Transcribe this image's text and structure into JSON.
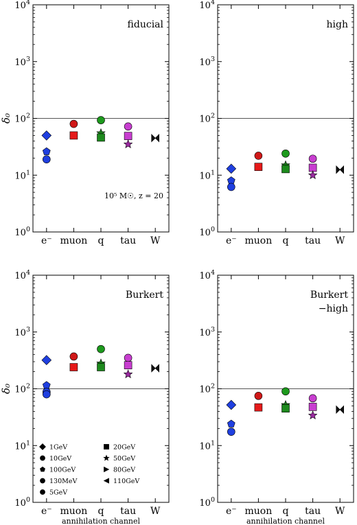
{
  "chart_data": [
    {
      "type": "scatter",
      "panel_label": "fiducial",
      "annotation": "10⁵ M☉, z = 20",
      "ylabel": "δ₀",
      "xlabel": "",
      "yscale": "log",
      "ylim": [
        1,
        10000
      ],
      "reference_line": 100,
      "categories": [
        "e⁻",
        "muon",
        "q",
        "tau",
        "W"
      ],
      "points": [
        {
          "x": "e⁻",
          "y": 50,
          "marker": "diamond",
          "color": "#1f3fe0"
        },
        {
          "x": "e⁻",
          "y": 26,
          "marker": "pentagon",
          "color": "#1f3fe0"
        },
        {
          "x": "e⁻",
          "y": 19,
          "marker": "circle",
          "color": "#1f3fe0"
        },
        {
          "x": "muon",
          "y": 80,
          "marker": "circle",
          "color": "#d01818"
        },
        {
          "x": "muon",
          "y": 50,
          "marker": "square",
          "color": "#e61a1a"
        },
        {
          "x": "q",
          "y": 93,
          "marker": "circle",
          "color": "#1d9a1d"
        },
        {
          "x": "q",
          "y": 55,
          "marker": "star",
          "color": "#1a7a1a"
        },
        {
          "x": "q",
          "y": 46,
          "marker": "square",
          "color": "#1d8a1d"
        },
        {
          "x": "tau",
          "y": 72,
          "marker": "circle",
          "color": "#c83ed0"
        },
        {
          "x": "tau",
          "y": 49,
          "marker": "square",
          "color": "#c83ed0"
        },
        {
          "x": "tau",
          "y": 35,
          "marker": "star",
          "color": "#9a2aa0"
        },
        {
          "x": "W",
          "y": 45,
          "marker": "bowtie",
          "color": "#111111"
        }
      ]
    },
    {
      "type": "scatter",
      "panel_label": "high",
      "annotation": "",
      "ylabel": "",
      "xlabel": "",
      "yscale": "log",
      "ylim": [
        1,
        10000
      ],
      "reference_line": 100,
      "categories": [
        "e⁻",
        "muon",
        "q",
        "tau",
        "W"
      ],
      "points": [
        {
          "x": "e⁻",
          "y": 13,
          "marker": "diamond",
          "color": "#1f3fe0"
        },
        {
          "x": "e⁻",
          "y": 8,
          "marker": "pentagon",
          "color": "#1f3fe0"
        },
        {
          "x": "e⁻",
          "y": 6.2,
          "marker": "circle",
          "color": "#1f3fe0"
        },
        {
          "x": "muon",
          "y": 22,
          "marker": "circle",
          "color": "#d01818"
        },
        {
          "x": "muon",
          "y": 14,
          "marker": "square",
          "color": "#e61a1a"
        },
        {
          "x": "q",
          "y": 24,
          "marker": "circle",
          "color": "#1d9a1d"
        },
        {
          "x": "q",
          "y": 15,
          "marker": "star",
          "color": "#1a7a1a"
        },
        {
          "x": "q",
          "y": 12.8,
          "marker": "square",
          "color": "#1d8a1d"
        },
        {
          "x": "tau",
          "y": 19.5,
          "marker": "circle",
          "color": "#c83ed0"
        },
        {
          "x": "tau",
          "y": 13.5,
          "marker": "square",
          "color": "#c83ed0"
        },
        {
          "x": "tau",
          "y": 10,
          "marker": "star",
          "color": "#9a2aa0"
        },
        {
          "x": "W",
          "y": 12.5,
          "marker": "bowtie",
          "color": "#111111"
        }
      ]
    },
    {
      "type": "scatter",
      "panel_label": "Burkert",
      "annotation": "",
      "ylabel": "δ₀",
      "xlabel": "annihilation channel",
      "yscale": "log",
      "ylim": [
        1,
        10000
      ],
      "reference_line": 100,
      "categories": [
        "e⁻",
        "muon",
        "q",
        "tau",
        "W"
      ],
      "points": [
        {
          "x": "e⁻",
          "y": 320,
          "marker": "diamond",
          "color": "#1f3fe0"
        },
        {
          "x": "e⁻",
          "y": 115,
          "marker": "pentagon",
          "color": "#1f3fe0"
        },
        {
          "x": "e⁻",
          "y": 88,
          "marker": "circle",
          "color": "#1f3fe0"
        },
        {
          "x": "e⁻",
          "y": 80,
          "marker": "circle",
          "color": "#1f3fe0"
        },
        {
          "x": "muon",
          "y": 370,
          "marker": "circle",
          "color": "#d01818"
        },
        {
          "x": "muon",
          "y": 240,
          "marker": "square",
          "color": "#e61a1a"
        },
        {
          "x": "q",
          "y": 500,
          "marker": "circle",
          "color": "#1d9a1d"
        },
        {
          "x": "q",
          "y": 280,
          "marker": "star",
          "color": "#1a7a1a"
        },
        {
          "x": "q",
          "y": 240,
          "marker": "square",
          "color": "#1d8a1d"
        },
        {
          "x": "tau",
          "y": 350,
          "marker": "circle",
          "color": "#c83ed0"
        },
        {
          "x": "tau",
          "y": 260,
          "marker": "square",
          "color": "#c83ed0"
        },
        {
          "x": "tau",
          "y": 180,
          "marker": "star",
          "color": "#9a2aa0"
        },
        {
          "x": "W",
          "y": 230,
          "marker": "bowtie",
          "color": "#111111"
        }
      ],
      "legend": {
        "placement": "lower-left",
        "entries": [
          {
            "label": "1GeV",
            "marker": "diamond"
          },
          {
            "label": "20GeV",
            "marker": "square"
          },
          {
            "label": "10GeV",
            "marker": "circle"
          },
          {
            "label": "50GeV",
            "marker": "star"
          },
          {
            "label": "100GeV",
            "marker": "pentagon"
          },
          {
            "label": "80GeV",
            "marker": "triangle-right"
          },
          {
            "label": "130MeV",
            "marker": "circle"
          },
          {
            "label": "110GeV",
            "marker": "triangle-left"
          },
          {
            "label": "5GeV",
            "marker": "circle"
          }
        ]
      }
    },
    {
      "type": "scatter",
      "panel_label": "Burkert\n−high",
      "annotation": "",
      "ylabel": "",
      "xlabel": "annihilation channel",
      "yscale": "log",
      "ylim": [
        1,
        10000
      ],
      "reference_line": 100,
      "categories": [
        "e⁻",
        "muon",
        "q",
        "tau",
        "W"
      ],
      "points": [
        {
          "x": "e⁻",
          "y": 52,
          "marker": "diamond",
          "color": "#1f3fe0"
        },
        {
          "x": "e⁻",
          "y": 24,
          "marker": "pentagon",
          "color": "#1f3fe0"
        },
        {
          "x": "e⁻",
          "y": 17.5,
          "marker": "circle",
          "color": "#1f3fe0"
        },
        {
          "x": "muon",
          "y": 75,
          "marker": "circle",
          "color": "#d01818"
        },
        {
          "x": "muon",
          "y": 47,
          "marker": "square",
          "color": "#e61a1a"
        },
        {
          "x": "q",
          "y": 90,
          "marker": "circle",
          "color": "#1d9a1d"
        },
        {
          "x": "q",
          "y": 52,
          "marker": "star",
          "color": "#1a7a1a"
        },
        {
          "x": "q",
          "y": 45,
          "marker": "square",
          "color": "#1d8a1d"
        },
        {
          "x": "tau",
          "y": 68,
          "marker": "circle",
          "color": "#c83ed0"
        },
        {
          "x": "tau",
          "y": 48,
          "marker": "square",
          "color": "#c83ed0"
        },
        {
          "x": "tau",
          "y": 34,
          "marker": "star",
          "color": "#9a2aa0"
        },
        {
          "x": "W",
          "y": 43,
          "marker": "bowtie",
          "color": "#111111"
        }
      ]
    }
  ]
}
